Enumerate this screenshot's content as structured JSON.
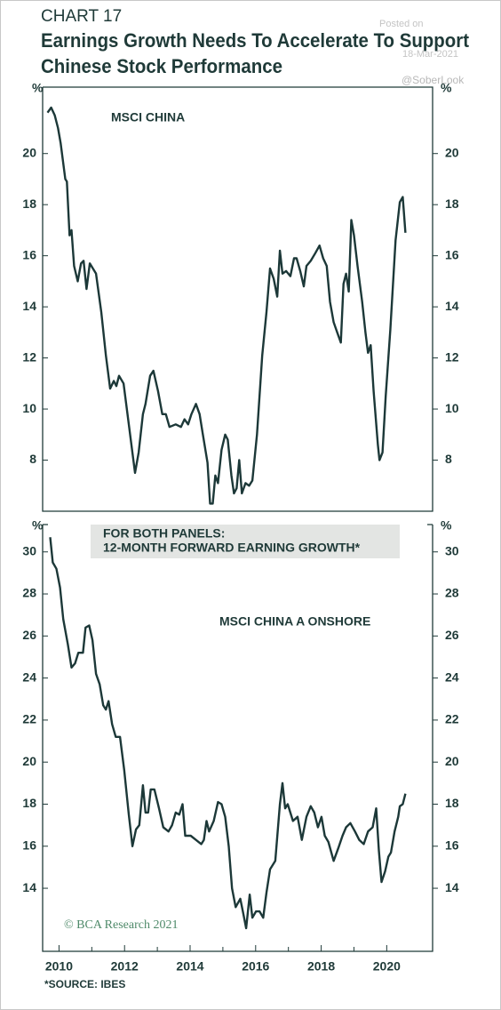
{
  "header": {
    "chart_number": "CHART 17",
    "title_lines": [
      "Earnings Growth Needs To Accelerate To Support",
      "Chinese Stock Performance"
    ]
  },
  "watermark": [
    "Posted on",
    "18-Mar-2021",
    "@SoberLook"
  ],
  "note_lines": [
    "FOR BOTH PANELS:",
    "12-MONTH FORWARD EARNING GROWTH*"
  ],
  "copyright": "© BCA Research 2021",
  "source": "*SOURCE: IBES",
  "chart_data": [
    {
      "type": "line",
      "label": "MSCI CHINA",
      "y_unit": "%",
      "color": "#1c3838",
      "xlim": [
        2009.5,
        2021.4
      ],
      "ylim": [
        6,
        22.6
      ],
      "yticks": [
        8,
        10,
        12,
        14,
        16,
        18,
        20
      ],
      "x": [
        2009.65,
        2009.76,
        2009.87,
        2009.97,
        2010.05,
        2010.19,
        2010.24,
        2010.32,
        2010.38,
        2010.46,
        2010.57,
        2010.67,
        2010.75,
        2010.84,
        2010.94,
        2011.13,
        2011.29,
        2011.43,
        2011.56,
        2011.67,
        2011.75,
        2011.83,
        2011.97,
        2012.16,
        2012.32,
        2012.43,
        2012.56,
        2012.64,
        2012.78,
        2012.88,
        2013.02,
        2013.15,
        2013.26,
        2013.37,
        2013.56,
        2013.72,
        2013.83,
        2013.94,
        2014.04,
        2014.18,
        2014.29,
        2014.39,
        2014.53,
        2014.61,
        2014.69,
        2014.77,
        2014.85,
        2014.96,
        2015.07,
        2015.15,
        2015.26,
        2015.34,
        2015.42,
        2015.5,
        2015.58,
        2015.69,
        2015.8,
        2015.9,
        2016.04,
        2016.2,
        2016.33,
        2016.44,
        2016.55,
        2016.66,
        2016.74,
        2016.82,
        2016.93,
        2017.06,
        2017.17,
        2017.25,
        2017.36,
        2017.47,
        2017.55,
        2017.68,
        2017.82,
        2017.95,
        2018.06,
        2018.17,
        2018.27,
        2018.38,
        2018.49,
        2018.6,
        2018.68,
        2018.76,
        2018.84,
        2018.92,
        2019.0,
        2019.11,
        2019.25,
        2019.35,
        2019.43,
        2019.51,
        2019.6,
        2019.73,
        2019.78,
        2019.87,
        2019.97,
        2020.11,
        2020.27,
        2020.4,
        2020.49,
        2020.57
      ],
      "values": [
        21.6,
        21.8,
        21.5,
        21.0,
        20.4,
        19.0,
        18.9,
        16.8,
        17.0,
        15.6,
        15.0,
        15.7,
        15.8,
        14.7,
        15.7,
        15.3,
        13.8,
        12.1,
        10.8,
        11.1,
        10.9,
        11.3,
        11.0,
        9.1,
        7.5,
        8.3,
        9.8,
        10.2,
        11.3,
        11.5,
        10.7,
        9.8,
        9.8,
        9.3,
        9.4,
        9.3,
        9.6,
        9.4,
        9.8,
        10.2,
        9.8,
        9.0,
        7.9,
        6.3,
        6.3,
        7.4,
        7.1,
        8.4,
        9.0,
        8.8,
        7.4,
        6.7,
        6.9,
        8.0,
        6.7,
        7.1,
        7.0,
        7.2,
        9.0,
        12.1,
        13.8,
        15.5,
        15.1,
        14.4,
        16.2,
        15.3,
        15.4,
        15.2,
        15.9,
        15.9,
        15.4,
        14.8,
        15.6,
        15.8,
        16.1,
        16.4,
        15.9,
        15.6,
        14.2,
        13.4,
        13.0,
        12.6,
        14.9,
        15.3,
        14.6,
        17.4,
        16.8,
        15.6,
        14.2,
        13.0,
        12.2,
        12.5,
        10.7,
        8.6,
        8.0,
        8.3,
        10.5,
        13.1,
        16.6,
        18.1,
        18.3,
        16.9
      ]
    },
    {
      "type": "line",
      "label": "MSCI CHINA A ONSHORE",
      "y_unit": "%",
      "color": "#1c3838",
      "xlim": [
        2009.5,
        2021.4
      ],
      "ylim": [
        11,
        31.3
      ],
      "yticks": [
        14,
        16,
        18,
        20,
        22,
        24,
        26,
        28,
        30
      ],
      "xticks": [
        2010,
        2012,
        2014,
        2016,
        2018,
        2020
      ],
      "xminor": [
        2011,
        2013,
        2015,
        2017,
        2019
      ],
      "x": [
        2009.73,
        2009.81,
        2009.92,
        2010.03,
        2010.13,
        2010.27,
        2010.38,
        2010.49,
        2010.59,
        2010.73,
        2010.81,
        2010.92,
        2011.02,
        2011.13,
        2011.24,
        2011.35,
        2011.43,
        2011.51,
        2011.62,
        2011.73,
        2011.86,
        2011.99,
        2012.13,
        2012.24,
        2012.35,
        2012.45,
        2012.56,
        2012.64,
        2012.72,
        2012.8,
        2012.91,
        2013.05,
        2013.18,
        2013.34,
        2013.45,
        2013.56,
        2013.67,
        2013.77,
        2013.85,
        2014.02,
        2014.18,
        2014.34,
        2014.42,
        2014.5,
        2014.58,
        2014.72,
        2014.85,
        2014.96,
        2015.07,
        2015.18,
        2015.28,
        2015.39,
        2015.53,
        2015.61,
        2015.71,
        2015.82,
        2015.9,
        2016.01,
        2016.12,
        2016.23,
        2016.33,
        2016.44,
        2016.6,
        2016.74,
        2016.82,
        2016.9,
        2016.98,
        2017.14,
        2017.28,
        2017.41,
        2017.55,
        2017.68,
        2017.79,
        2017.9,
        2018.01,
        2018.11,
        2018.22,
        2018.38,
        2018.52,
        2018.65,
        2018.76,
        2018.89,
        2019.03,
        2019.16,
        2019.3,
        2019.43,
        2019.57,
        2019.68,
        2019.76,
        2019.84,
        2019.95,
        2020.05,
        2020.13,
        2020.24,
        2020.35,
        2020.4,
        2020.49,
        2020.57
      ],
      "values": [
        30.7,
        29.5,
        29.2,
        28.3,
        26.8,
        25.6,
        24.5,
        24.7,
        25.2,
        25.2,
        26.4,
        26.5,
        25.8,
        24.2,
        23.7,
        22.7,
        22.5,
        22.9,
        21.8,
        21.2,
        21.2,
        19.6,
        17.5,
        16.0,
        16.8,
        17.0,
        18.9,
        17.6,
        17.6,
        18.7,
        18.7,
        17.8,
        16.9,
        16.7,
        17.0,
        17.6,
        17.5,
        18.0,
        16.5,
        16.5,
        16.3,
        16.1,
        16.3,
        17.2,
        16.7,
        17.2,
        18.1,
        18.0,
        17.4,
        16.0,
        14.0,
        13.1,
        13.5,
        12.9,
        12.1,
        13.7,
        12.6,
        12.9,
        12.9,
        12.6,
        13.8,
        14.9,
        15.3,
        18.0,
        19.0,
        17.8,
        18.0,
        17.2,
        17.4,
        16.3,
        17.4,
        17.9,
        17.6,
        16.9,
        17.4,
        16.5,
        16.2,
        15.3,
        15.9,
        16.5,
        16.9,
        17.1,
        16.7,
        16.3,
        16.1,
        16.7,
        16.9,
        17.8,
        15.8,
        14.3,
        14.8,
        15.5,
        15.7,
        16.7,
        17.4,
        17.9,
        18.0,
        18.5
      ]
    }
  ]
}
